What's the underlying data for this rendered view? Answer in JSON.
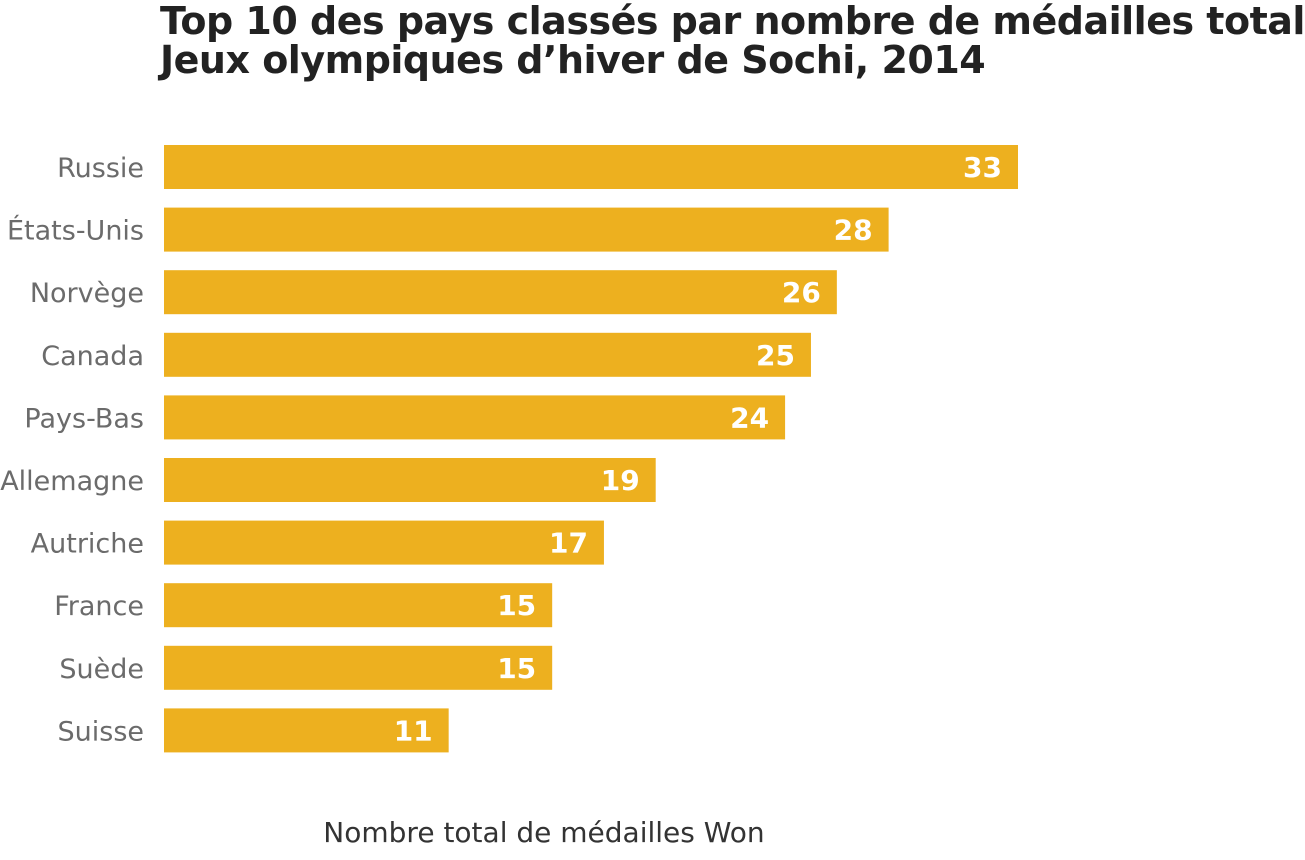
{
  "chart_data": {
    "type": "bar",
    "orientation": "horizontal",
    "title_lines": [
      "Top 10 des pays classés par nombre de médailles total",
      "Jeux olympiques d’hiver de Sochi, 2014"
    ],
    "xlabel": "Nombre total de médailles Won",
    "ylabel": "",
    "categories": [
      "Russie",
      "États-Unis",
      "Norvège",
      "Canada",
      "Pays-Bas",
      "Allemagne",
      "Autriche",
      "France",
      "Suède",
      "Suisse"
    ],
    "series": [
      {
        "values": [
          33,
          28,
          26,
          25,
          24,
          19,
          17,
          15,
          15,
          11
        ],
        "color": "#EDB01F"
      }
    ],
    "data_labels": [
      "33",
      "28",
      "26",
      "25",
      "24",
      "19",
      "17",
      "15",
      "15",
      "11"
    ],
    "xlim": [
      0,
      33
    ],
    "grid": false,
    "legend": "none"
  }
}
